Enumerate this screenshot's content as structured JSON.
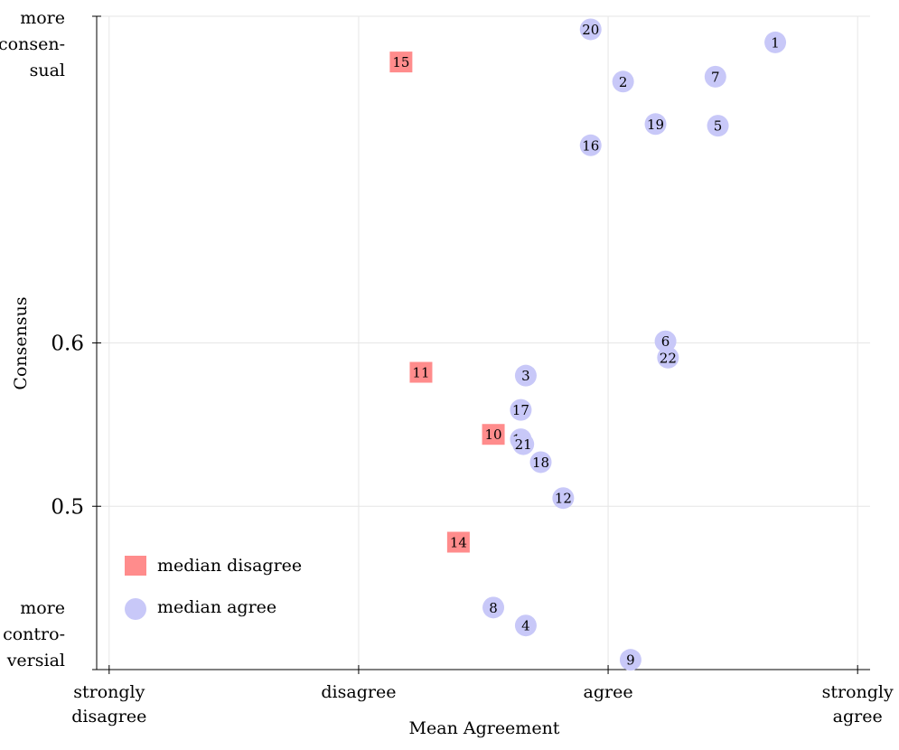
{
  "chart_data": {
    "type": "scatter",
    "title": "",
    "xlabel": "Mean Agreement",
    "ylabel": "Consensus",
    "xlim": [
      -0.05,
      3.05
    ],
    "ylim": [
      0.4,
      0.8
    ],
    "x_ticks": [
      {
        "value": 0,
        "lines": [
          "strongly",
          "disagree"
        ]
      },
      {
        "value": 1,
        "lines": [
          "disagree"
        ]
      },
      {
        "value": 2,
        "lines": [
          "agree"
        ]
      },
      {
        "value": 3,
        "lines": [
          "strongly",
          "agree"
        ]
      }
    ],
    "y_ticks": [
      {
        "value": 0.5,
        "lines": [
          "0.5"
        ]
      },
      {
        "value": 0.6,
        "lines": [
          "0.6"
        ]
      }
    ],
    "y_extreme_labels": {
      "top": [
        "more",
        "consen-",
        "sual"
      ],
      "bottom": [
        "more",
        "contro-",
        "versial"
      ]
    },
    "grid": true,
    "legend_position": "bottom-left",
    "series": [
      {
        "name": "median disagree",
        "marker": "square",
        "color": "#ff8c8c",
        "points": [
          {
            "label": "15",
            "x": 1.17,
            "y": 0.772
          },
          {
            "label": "11",
            "x": 1.25,
            "y": 0.582
          },
          {
            "label": "10",
            "x": 1.54,
            "y": 0.544
          },
          {
            "label": "14",
            "x": 1.4,
            "y": 0.478
          }
        ]
      },
      {
        "name": "median agree",
        "marker": "circle",
        "color": "#c8c8f8",
        "points": [
          {
            "label": "20",
            "x": 1.93,
            "y": 0.792
          },
          {
            "label": "1",
            "x": 2.67,
            "y": 0.784
          },
          {
            "label": "7",
            "x": 2.43,
            "y": 0.763
          },
          {
            "label": "2",
            "x": 2.06,
            "y": 0.76
          },
          {
            "label": "19",
            "x": 2.19,
            "y": 0.734
          },
          {
            "label": "5",
            "x": 2.44,
            "y": 0.733
          },
          {
            "label": "16",
            "x": 1.93,
            "y": 0.721
          },
          {
            "label": "6",
            "x": 2.23,
            "y": 0.601
          },
          {
            "label": "22",
            "x": 2.24,
            "y": 0.591
          },
          {
            "label": "3",
            "x": 1.67,
            "y": 0.58
          },
          {
            "label": "17",
            "x": 1.65,
            "y": 0.559
          },
          {
            "label": "13",
            "x": 1.65,
            "y": 0.541
          },
          {
            "label": "21",
            "x": 1.66,
            "y": 0.538
          },
          {
            "label": "18",
            "x": 1.73,
            "y": 0.527
          },
          {
            "label": "12",
            "x": 1.82,
            "y": 0.505
          },
          {
            "label": "8",
            "x": 1.54,
            "y": 0.438
          },
          {
            "label": "4",
            "x": 1.67,
            "y": 0.427
          },
          {
            "label": "9",
            "x": 2.09,
            "y": 0.406
          }
        ]
      }
    ]
  }
}
